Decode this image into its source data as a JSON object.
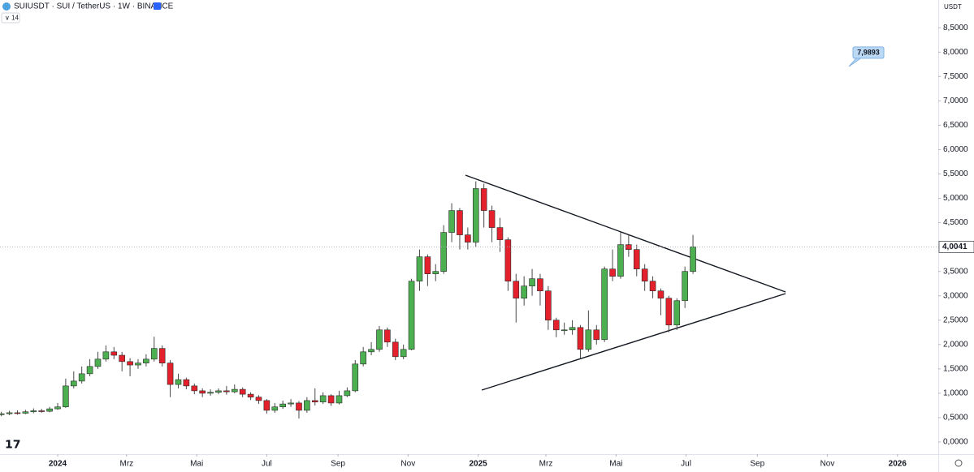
{
  "chart_data": {
    "type": "candlestick",
    "title": "SUIUSDT · SUI / TetherUS · 1W · BINANCE",
    "indicator": "14",
    "y_unit": "USDT",
    "up_color": "#4caf50",
    "down_color": "#e3202b",
    "x": [
      -7,
      -6,
      -5,
      -4,
      -3,
      -2,
      -1,
      0,
      1,
      2,
      3,
      4,
      5,
      6,
      7,
      8,
      9,
      10,
      11,
      12,
      13,
      14,
      15,
      16,
      17,
      18,
      19,
      20,
      21,
      22,
      23,
      24,
      25,
      26,
      27,
      28,
      29,
      30,
      31,
      32,
      33,
      34,
      35,
      36,
      37,
      38,
      39,
      40,
      41,
      42,
      43,
      44,
      45,
      46,
      47,
      48,
      49,
      50,
      51,
      52,
      53,
      54,
      55,
      56,
      57,
      58,
      59,
      60,
      61,
      62,
      63,
      64,
      65,
      66,
      67,
      68,
      69,
      70,
      71,
      72,
      73,
      74,
      75,
      76,
      77,
      78,
      79
    ],
    "open": [
      0.56,
      0.58,
      0.6,
      0.59,
      0.62,
      0.64,
      0.63,
      0.68,
      0.72,
      1.15,
      1.25,
      1.4,
      1.55,
      1.7,
      1.85,
      1.78,
      1.65,
      1.58,
      1.62,
      1.7,
      1.92,
      1.62,
      1.18,
      1.28,
      1.15,
      1.05,
      1.0,
      1.02,
      1.05,
      1.03,
      1.08,
      0.98,
      0.92,
      0.85,
      0.65,
      0.72,
      0.78,
      0.8,
      0.65,
      0.85,
      0.82,
      0.95,
      0.8,
      0.95,
      1.05,
      1.6,
      1.85,
      1.9,
      2.3,
      2.05,
      1.75,
      1.9,
      3.3,
      3.8,
      3.45,
      3.5,
      4.3,
      4.75,
      4.25,
      4.1,
      5.2,
      4.75,
      4.4,
      4.15,
      3.3,
      2.95,
      3.2,
      3.35,
      3.1,
      2.5,
      2.3,
      2.3,
      2.35,
      1.9,
      2.3,
      2.1,
      3.55,
      3.4,
      4.05,
      3.95,
      3.55,
      3.3,
      3.1,
      2.95,
      2.4,
      2.9,
      3.5
    ],
    "high": [
      0.62,
      0.64,
      0.65,
      0.66,
      0.69,
      0.68,
      0.72,
      0.8,
      1.3,
      1.45,
      1.55,
      1.7,
      1.85,
      1.98,
      1.95,
      1.85,
      1.72,
      1.7,
      1.8,
      2.16,
      1.98,
      1.68,
      1.4,
      1.32,
      1.2,
      1.1,
      1.08,
      1.1,
      1.15,
      1.18,
      1.12,
      1.02,
      0.96,
      0.88,
      0.8,
      0.85,
      0.88,
      0.84,
      0.92,
      1.1,
      1.02,
      0.98,
      1.05,
      1.12,
      1.68,
      1.95,
      2.05,
      2.38,
      2.35,
      2.12,
      2.0,
      3.35,
      3.95,
      3.85,
      3.65,
      4.45,
      4.9,
      4.8,
      4.4,
      5.35,
      5.3,
      4.85,
      4.6,
      4.2,
      3.45,
      3.4,
      3.55,
      3.45,
      3.2,
      2.55,
      2.45,
      2.5,
      2.4,
      2.7,
      2.4,
      3.6,
      3.95,
      4.3,
      4.25,
      4.05,
      3.65,
      3.4,
      3.15,
      3.0,
      2.95,
      3.6,
      4.25
    ],
    "low": [
      0.53,
      0.55,
      0.56,
      0.57,
      0.59,
      0.6,
      0.61,
      0.66,
      0.7,
      1.1,
      1.2,
      1.35,
      1.5,
      1.65,
      1.7,
      1.45,
      1.35,
      1.5,
      1.55,
      1.65,
      1.55,
      0.92,
      1.1,
      1.08,
      0.98,
      0.92,
      0.95,
      0.98,
      0.97,
      1.0,
      0.92,
      0.86,
      0.78,
      0.58,
      0.6,
      0.68,
      0.72,
      0.48,
      0.6,
      0.75,
      0.78,
      0.74,
      0.77,
      0.92,
      1.02,
      1.55,
      1.78,
      1.85,
      1.95,
      1.68,
      1.7,
      1.88,
      3.1,
      3.2,
      3.3,
      3.45,
      4.1,
      3.95,
      3.95,
      4.0,
      4.4,
      4.1,
      3.9,
      3.1,
      2.45,
      2.8,
      3.0,
      2.8,
      2.3,
      2.15,
      2.2,
      2.2,
      1.72,
      1.85,
      2.0,
      2.05,
      3.3,
      3.35,
      3.8,
      3.4,
      3.1,
      2.95,
      2.6,
      2.25,
      2.3,
      2.75,
      3.45
    ],
    "close": [
      0.58,
      0.6,
      0.59,
      0.62,
      0.64,
      0.63,
      0.68,
      0.72,
      1.15,
      1.25,
      1.4,
      1.55,
      1.7,
      1.85,
      1.78,
      1.65,
      1.58,
      1.62,
      1.7,
      1.92,
      1.62,
      1.18,
      1.28,
      1.15,
      1.05,
      1.0,
      1.02,
      1.05,
      1.03,
      1.08,
      0.98,
      0.92,
      0.85,
      0.65,
      0.72,
      0.78,
      0.8,
      0.65,
      0.85,
      0.82,
      0.95,
      0.8,
      0.95,
      1.05,
      1.6,
      1.85,
      1.9,
      2.3,
      2.05,
      1.75,
      1.9,
      3.3,
      3.8,
      3.45,
      3.5,
      4.3,
      4.75,
      4.25,
      4.1,
      5.2,
      4.75,
      4.4,
      4.15,
      3.3,
      2.95,
      3.2,
      3.35,
      3.1,
      2.5,
      2.3,
      2.3,
      2.35,
      1.9,
      2.3,
      2.1,
      3.55,
      3.4,
      4.05,
      3.95,
      3.55,
      3.3,
      3.1,
      2.95,
      2.4,
      2.9,
      3.5,
      4.0041
    ],
    "last_price": {
      "value": 4.0041,
      "label": "4,0041"
    },
    "annotation": {
      "value": 7.9893,
      "label": "7,9893"
    },
    "xlim": [
      -7.17,
      109.5
    ],
    "xticks": [
      {
        "value": 0,
        "label": "2024"
      },
      {
        "value": 8.57,
        "label": "Mrz"
      },
      {
        "value": 17.29,
        "label": "Mai"
      },
      {
        "value": 26,
        "label": "Jul"
      },
      {
        "value": 34.86,
        "label": "Sep"
      },
      {
        "value": 43.57,
        "label": "Nov"
      },
      {
        "value": 52.29,
        "label": "2025"
      },
      {
        "value": 60.71,
        "label": "Mrz"
      },
      {
        "value": 69.43,
        "label": "Mai"
      },
      {
        "value": 78.14,
        "label": "Jul"
      },
      {
        "value": 87,
        "label": "Sep"
      },
      {
        "value": 95.71,
        "label": "Nov"
      },
      {
        "value": 104.43,
        "label": "2026"
      }
    ],
    "ylim": [
      -0.25,
      9.07
    ],
    "yticks": [
      {
        "value": 0,
        "label": "0,0000"
      },
      {
        "value": 0.5,
        "label": "0,5000"
      },
      {
        "value": 1,
        "label": "1,0000"
      },
      {
        "value": 1.5,
        "label": "1,5000"
      },
      {
        "value": 2,
        "label": "2,0000"
      },
      {
        "value": 2.5,
        "label": "2,5000"
      },
      {
        "value": 3,
        "label": "3,0000"
      },
      {
        "value": 3.5,
        "label": "3,5000"
      },
      {
        "value": 4,
        "label": "4,0000"
      },
      {
        "value": 4.5,
        "label": "4,5000"
      },
      {
        "value": 5,
        "label": "5,0000"
      },
      {
        "value": 5.5,
        "label": "5,5000"
      },
      {
        "value": 6,
        "label": "6,0000"
      },
      {
        "value": 6.5,
        "label": "6,5000"
      },
      {
        "value": 7,
        "label": "7,0000"
      },
      {
        "value": 7.5,
        "label": "7,5000"
      },
      {
        "value": 8,
        "label": "8,0000"
      },
      {
        "value": 8.5,
        "label": "8,5000"
      }
    ]
  }
}
